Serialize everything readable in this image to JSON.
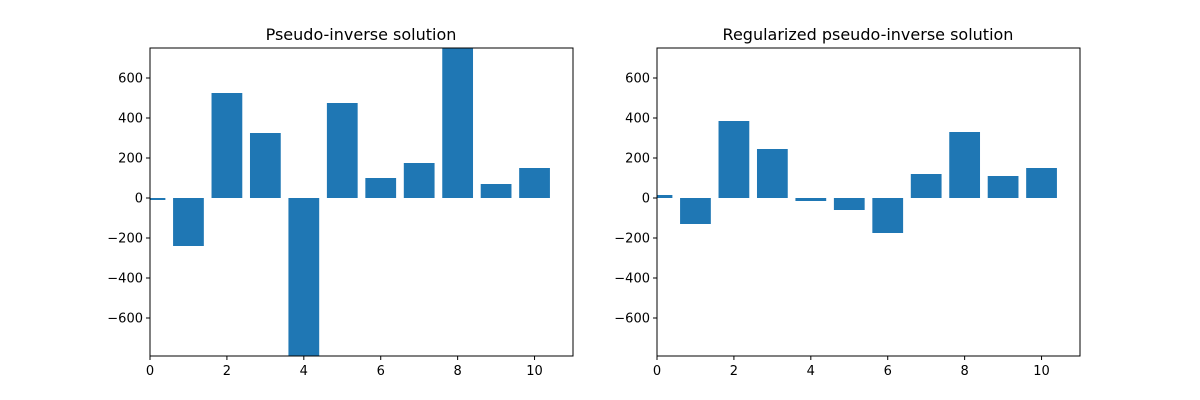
{
  "chart_data": [
    {
      "type": "bar",
      "title": "Pseudo-inverse solution",
      "xlabel": "",
      "ylabel": "",
      "categories": [
        0,
        1,
        2,
        3,
        4,
        5,
        6,
        7,
        8,
        9,
        10
      ],
      "values": [
        -10,
        -240,
        525,
        325,
        -790,
        475,
        100,
        175,
        750,
        70,
        150
      ],
      "xlim": [
        0,
        11
      ],
      "ylim": [
        -790,
        750
      ],
      "xticks": [
        0,
        2,
        4,
        6,
        8,
        10
      ],
      "xtick_labels": [
        "0",
        "2",
        "4",
        "6",
        "8",
        "10"
      ],
      "yticks": [
        -600,
        -400,
        -200,
        0,
        200,
        400,
        600
      ],
      "ytick_labels": [
        "−600",
        "−400",
        "−200",
        "0",
        "200",
        "400",
        "600"
      ],
      "bar_color": "#1f77b4",
      "grid": false
    },
    {
      "type": "bar",
      "title": "Regularized pseudo-inverse solution",
      "xlabel": "",
      "ylabel": "",
      "categories": [
        0,
        1,
        2,
        3,
        4,
        5,
        6,
        7,
        8,
        9,
        10
      ],
      "values": [
        15,
        -130,
        385,
        245,
        -15,
        -60,
        -175,
        120,
        330,
        110,
        150
      ],
      "xlim": [
        0,
        11
      ],
      "ylim": [
        -790,
        750
      ],
      "xticks": [
        0,
        2,
        4,
        6,
        8,
        10
      ],
      "xtick_labels": [
        "0",
        "2",
        "4",
        "6",
        "8",
        "10"
      ],
      "yticks": [
        -600,
        -400,
        -200,
        0,
        200,
        400,
        600
      ],
      "ytick_labels": [
        "−600",
        "−400",
        "−200",
        "0",
        "200",
        "400",
        "600"
      ],
      "bar_color": "#1f77b4",
      "grid": false
    }
  ]
}
